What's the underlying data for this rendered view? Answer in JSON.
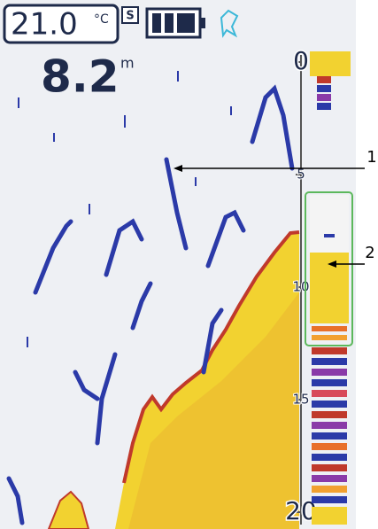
{
  "header": {
    "temperature": "21.0",
    "temperature_unit": "°C",
    "mode_badge": "S"
  },
  "depth": {
    "value": "8.2",
    "unit": "m"
  },
  "depth_scale": {
    "ticks": [
      0,
      5,
      10,
      15,
      20
    ]
  },
  "callouts": [
    "1",
    "2"
  ]
}
